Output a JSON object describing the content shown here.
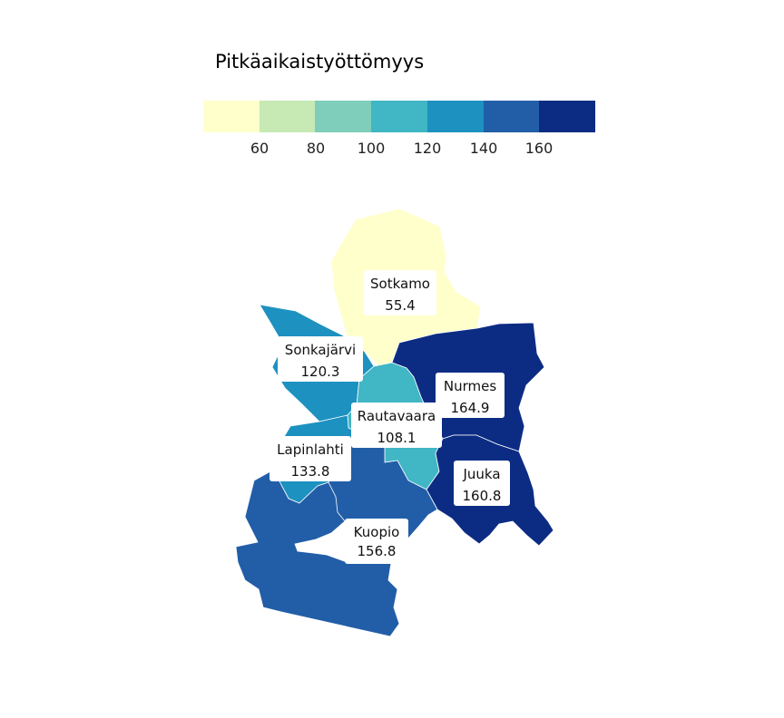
{
  "legend": {
    "title": "Pitkäaikaistyöttömyys",
    "ticks": [
      "60",
      "80",
      "100",
      "120",
      "140",
      "160"
    ],
    "colors": [
      "#ffffcc",
      "#c7e9b4",
      "#7fcdbb",
      "#41b6c4",
      "#1d91c0",
      "#225ea8",
      "#0c2c84"
    ]
  },
  "regions": [
    {
      "name": "Sotkamo",
      "value": "55.4",
      "color": "#ffffcc"
    },
    {
      "name": "Sonkajärvi",
      "value": "120.3",
      "color": "#1d91c0"
    },
    {
      "name": "Nurmes",
      "value": "164.9",
      "color": "#0c2c84"
    },
    {
      "name": "Rautavaara",
      "value": "108.1",
      "color": "#41b6c4"
    },
    {
      "name": "Lapinlahti",
      "value": "133.8",
      "color": "#1d91c0"
    },
    {
      "name": "Juuka",
      "value": "160.8",
      "color": "#0c2c84"
    },
    {
      "name": "Kuopio",
      "value": "156.8",
      "color": "#225ea8"
    }
  ]
}
